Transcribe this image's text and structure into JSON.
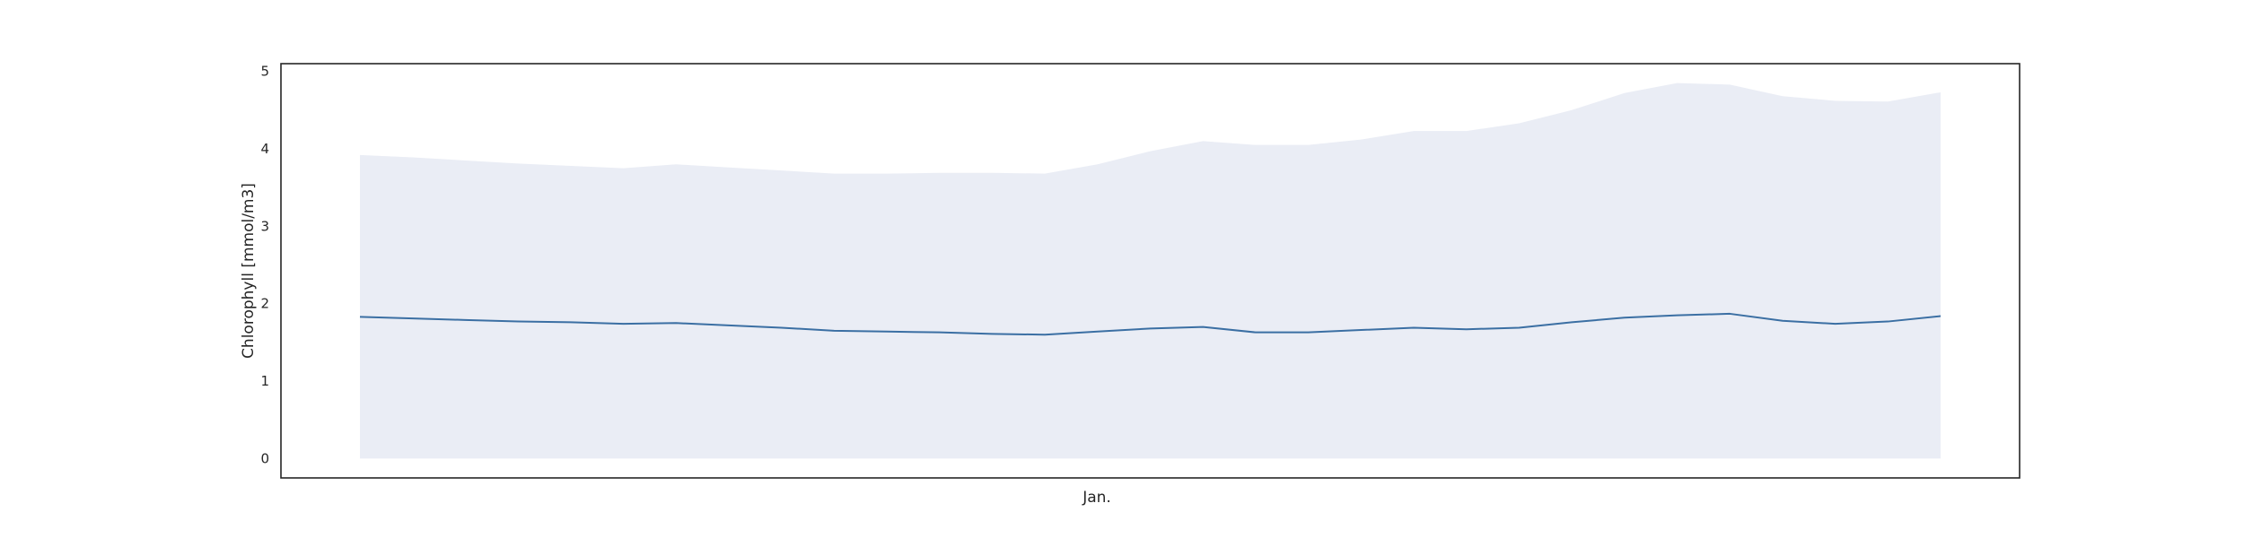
{
  "chart_data": {
    "type": "area",
    "title": "",
    "xlabel": "Jan.",
    "ylabel": "Chlorophyll [mmol/m3]",
    "ylim": [
      -0.25,
      5.1
    ],
    "yticks": [
      0,
      1,
      2,
      3,
      4,
      5
    ],
    "grid": false,
    "legend": "none",
    "x": [
      1,
      2,
      3,
      4,
      5,
      6,
      7,
      8,
      9,
      10,
      11,
      12,
      13,
      14,
      15,
      16,
      17,
      18,
      19,
      20,
      21,
      22,
      23,
      24,
      25,
      26,
      27,
      28,
      29,
      30,
      31
    ],
    "series": [
      {
        "kind": "band",
        "lower": [
          0,
          0,
          0,
          0,
          0,
          0,
          0,
          0,
          0,
          0,
          0,
          0,
          0,
          0,
          0,
          0,
          0,
          0,
          0,
          0,
          0,
          0,
          0,
          0,
          0,
          0,
          0,
          0,
          0,
          0,
          0
        ],
        "upper": [
          3.92,
          3.89,
          3.85,
          3.81,
          3.78,
          3.75,
          3.8,
          3.76,
          3.72,
          3.68,
          3.68,
          3.69,
          3.69,
          3.68,
          3.8,
          3.97,
          4.1,
          4.05,
          4.05,
          4.12,
          4.23,
          4.23,
          4.33,
          4.5,
          4.72,
          4.85,
          4.83,
          4.68,
          4.62,
          4.61,
          4.73
        ]
      },
      {
        "kind": "line",
        "values": [
          1.83,
          1.81,
          1.79,
          1.77,
          1.76,
          1.74,
          1.75,
          1.72,
          1.69,
          1.65,
          1.64,
          1.63,
          1.61,
          1.6,
          1.64,
          1.68,
          1.7,
          1.63,
          1.63,
          1.66,
          1.69,
          1.67,
          1.69,
          1.76,
          1.82,
          1.85,
          1.87,
          1.78,
          1.74,
          1.77,
          1.84
        ]
      }
    ],
    "colors": {
      "line": "#3b6fa3",
      "band": "#eaedf5",
      "frame": "#262626",
      "text": "#262626"
    }
  }
}
